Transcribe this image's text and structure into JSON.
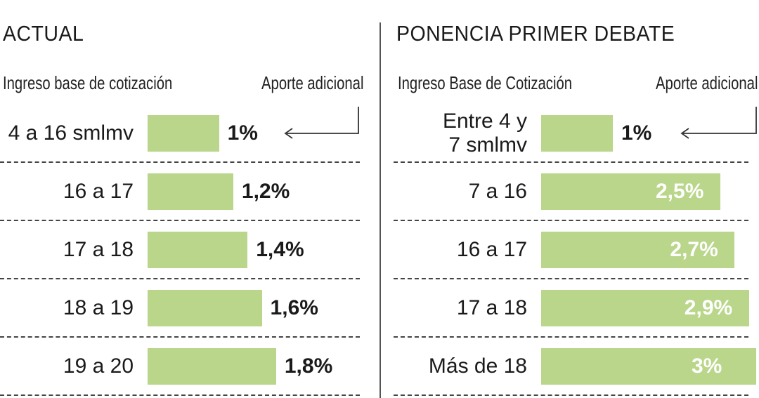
{
  "chart_data": [
    {
      "type": "bar",
      "title": "ACTUAL",
      "category_header": "Ingreso base de cotización",
      "value_header": "Aporte adicional",
      "categories": [
        "4 a 16 smlmv",
        "16 a 17",
        "17 a 18",
        "18 a 19",
        "19 a 20"
      ],
      "values": [
        1,
        1.2,
        1.4,
        1.6,
        1.8
      ],
      "value_labels": [
        "1%",
        "1,2%",
        "1,4%",
        "1,6%",
        "1,8%"
      ],
      "bar_color": "#b9d68a"
    },
    {
      "type": "bar",
      "title": "PONENCIA PRIMER DEBATE",
      "category_header": "Ingreso Base de Cotización",
      "value_header": "Aporte adicional",
      "categories": [
        "Entre 4 y\n7 smlmv",
        "7 a 16",
        "16 a 17",
        "17 a 18",
        "Más de 18"
      ],
      "values": [
        1,
        2.5,
        2.7,
        2.9,
        3
      ],
      "value_labels": [
        "1%",
        "2,5%",
        "2,7%",
        "2,9%",
        "3%"
      ],
      "bar_color": "#b9d68a"
    }
  ]
}
